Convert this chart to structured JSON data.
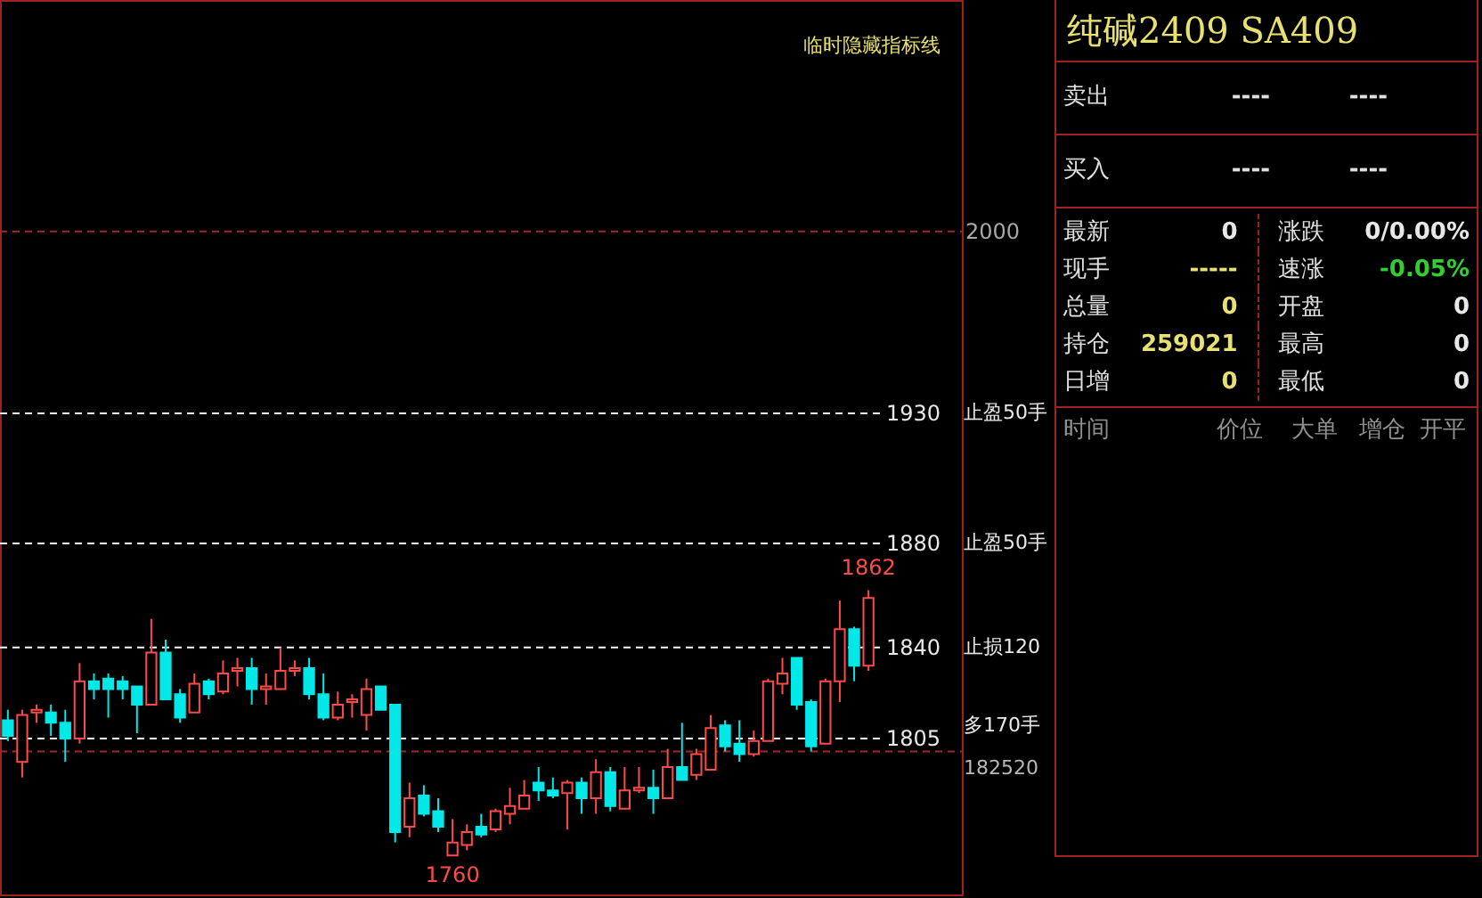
{
  "chart_data": [
    {
      "type": "candlestick",
      "categories": [
        null,
        null,
        null,
        null,
        null,
        null,
        null,
        null,
        null,
        null,
        null,
        null,
        null,
        null,
        null,
        null,
        null,
        null,
        null,
        null,
        null,
        null,
        null,
        null,
        null,
        null,
        null,
        null,
        null,
        null,
        null,
        null,
        null,
        null,
        null,
        null,
        null,
        null,
        null,
        null,
        null,
        null,
        null,
        null,
        null,
        null,
        null,
        null,
        null,
        null,
        null,
        null,
        null,
        null,
        null,
        null,
        null,
        null,
        null,
        null,
        null
      ],
      "ohlc": [
        [
          1812,
          1816,
          1804,
          1806
        ],
        [
          1796,
          1816,
          1790,
          1814
        ],
        [
          1815,
          1818,
          1811,
          1816
        ],
        [
          1815,
          1818,
          1806,
          1811
        ],
        [
          1811,
          1816,
          1796,
          1805
        ],
        [
          1805,
          1834,
          1803,
          1827
        ],
        [
          1827,
          1830,
          1820,
          1824
        ],
        [
          1828,
          1830,
          1813,
          1824
        ],
        [
          1827,
          1829,
          1820,
          1824
        ],
        [
          1825,
          1825,
          1807,
          1818
        ],
        [
          1818,
          1851,
          1818,
          1838
        ],
        [
          1838,
          1843,
          1820,
          1820
        ],
        [
          1822,
          1824,
          1811,
          1813
        ],
        [
          1815,
          1830,
          1815,
          1826
        ],
        [
          1827,
          1828,
          1820,
          1822
        ],
        [
          1823,
          1835,
          1822,
          1830
        ],
        [
          1831,
          1836,
          1825,
          1832
        ],
        [
          1832,
          1836,
          1818,
          1824
        ],
        [
          1824,
          1830,
          1818,
          1825
        ],
        [
          1824,
          1840,
          1824,
          1831
        ],
        [
          1831,
          1835,
          1829,
          1832
        ],
        [
          1832,
          1836,
          1820,
          1822
        ],
        [
          1822,
          1830,
          1812,
          1813
        ],
        [
          1813,
          1823,
          1812,
          1818
        ],
        [
          1819,
          1822,
          1813,
          1820
        ],
        [
          1814,
          1828,
          1808,
          1824
        ],
        [
          1825,
          1825,
          1816,
          1816
        ],
        [
          1818,
          1818,
          1765,
          1769
        ],
        [
          1771,
          1788,
          1767,
          1782
        ],
        [
          1783,
          1787,
          1775,
          1776
        ],
        [
          1777,
          1782,
          1769,
          1771
        ],
        [
          1760,
          1774,
          1760,
          1765
        ],
        [
          1764,
          1772,
          1762,
          1769
        ],
        [
          1771,
          1776,
          1767,
          1768
        ],
        [
          1770,
          1778,
          1769,
          1777
        ],
        [
          1776,
          1786,
          1772,
          1779
        ],
        [
          1778,
          1789,
          1778,
          1783
        ],
        [
          1788,
          1794,
          1781,
          1785
        ],
        [
          1785,
          1790,
          1782,
          1783
        ],
        [
          1784,
          1789,
          1770,
          1788
        ],
        [
          1788,
          1790,
          1776,
          1782
        ],
        [
          1782,
          1797,
          1776,
          1792
        ],
        [
          1792,
          1794,
          1777,
          1779
        ],
        [
          1778,
          1794,
          1778,
          1785
        ],
        [
          1785,
          1794,
          1784,
          1786
        ],
        [
          1786,
          1793,
          1776,
          1782
        ],
        [
          1782,
          1801,
          1782,
          1794
        ],
        [
          1794,
          1811,
          1789,
          1789
        ],
        [
          1791,
          1801,
          1789,
          1799
        ],
        [
          1793,
          1814,
          1793,
          1809
        ],
        [
          1810,
          1812,
          1800,
          1802
        ],
        [
          1803,
          1812,
          1796,
          1799
        ],
        [
          1799,
          1808,
          1798,
          1804
        ],
        [
          1804,
          1828,
          1804,
          1827
        ],
        [
          1826,
          1836,
          1822,
          1830
        ],
        [
          1836,
          1836,
          1816,
          1818
        ],
        [
          1819,
          1820,
          1800,
          1802
        ],
        [
          1803,
          1828,
          1803,
          1827
        ],
        [
          1827,
          1858,
          1819,
          1847
        ],
        [
          1847,
          1848,
          1827,
          1833
        ],
        [
          1833,
          1862,
          1831,
          1859
        ]
      ],
      "colors": [
        "#00e8e8",
        "#ff4a4a",
        "#ff4a4a",
        "#00e8e8",
        "#00e8e8",
        "#ff4a4a",
        "#00e8e8",
        "#00e8e8",
        "#00e8e8",
        "#00e8e8",
        "#ff4a4a",
        "#00e8e8",
        "#00e8e8",
        "#ff4a4a",
        "#00e8e8",
        "#ff4a4a",
        "#ff4a4a",
        "#00e8e8",
        "#ff4a4a",
        "#ff4a4a",
        "#ff4a4a",
        "#00e8e8",
        "#00e8e8",
        "#ff4a4a",
        "#ff4a4a",
        "#ff4a4a",
        "#00e8e8",
        "#00e8e8",
        "#ff4a4a",
        "#00e8e8",
        "#00e8e8",
        "#ff4a4a",
        "#ff4a4a",
        "#00e8e8",
        "#ff4a4a",
        "#ff4a4a",
        "#ff4a4a",
        "#00e8e8",
        "#00e8e8",
        "#ff4a4a",
        "#00e8e8",
        "#ff4a4a",
        "#00e8e8",
        "#ff4a4a",
        "#ff4a4a",
        "#00e8e8",
        "#ff4a4a",
        "#00e8e8",
        "#ff4a4a",
        "#ff4a4a",
        "#00e8e8",
        "#00e8e8",
        "#ff4a4a",
        "#ff4a4a",
        "#ff4a4a",
        "#00e8e8",
        "#00e8e8",
        "#ff4a4a",
        "#ff4a4a",
        "#00e8e8",
        "#ff4a4a"
      ],
      "ylim": [
        1745,
        2089
      ],
      "ref_lines": [
        {
          "axis": "y",
          "value": 2000,
          "label": "2000",
          "color": "#a02828",
          "line_style": "dashed"
        },
        {
          "axis": "y",
          "value": 1930,
          "label": "1930",
          "color": "#ffffff",
          "line_style": "dashed"
        },
        {
          "axis": "y",
          "value": 1880,
          "label": "1880",
          "color": "#ffffff",
          "line_style": "dashed"
        },
        {
          "axis": "y",
          "value": 1840,
          "label": "1840",
          "color": "#ffffff",
          "line_style": "dashed"
        },
        {
          "axis": "y",
          "value": 1805,
          "label": "1805",
          "color": "#ffffff",
          "line_style": "dashed"
        },
        {
          "axis": "y",
          "value": 1800,
          "color": "#a02828",
          "line_style": "dashed"
        }
      ],
      "annotations": [
        "临时隐藏指标线",
        "止盈50手",
        "止盈50手",
        "止损120",
        "多170手",
        "182520",
        {
          "text": "1862",
          "y": 1862
        },
        {
          "text": "1760",
          "y": 1760
        }
      ]
    },
    {
      "type": "other",
      "title": "纯碱2409 SA409",
      "annotations": [
        "卖出",
        "----",
        "----",
        "买入",
        "----",
        "----",
        "最新",
        "0",
        "涨跌",
        "0/0.00%",
        "现手",
        "-----",
        "速涨",
        "-0.05%",
        "总量",
        "0",
        "开盘",
        "0",
        "持仓",
        "259021",
        "最高",
        "0",
        "日增",
        "0",
        "最低",
        "0",
        "时间",
        "价位",
        "大单",
        "增仓",
        "开平"
      ]
    }
  ]
}
